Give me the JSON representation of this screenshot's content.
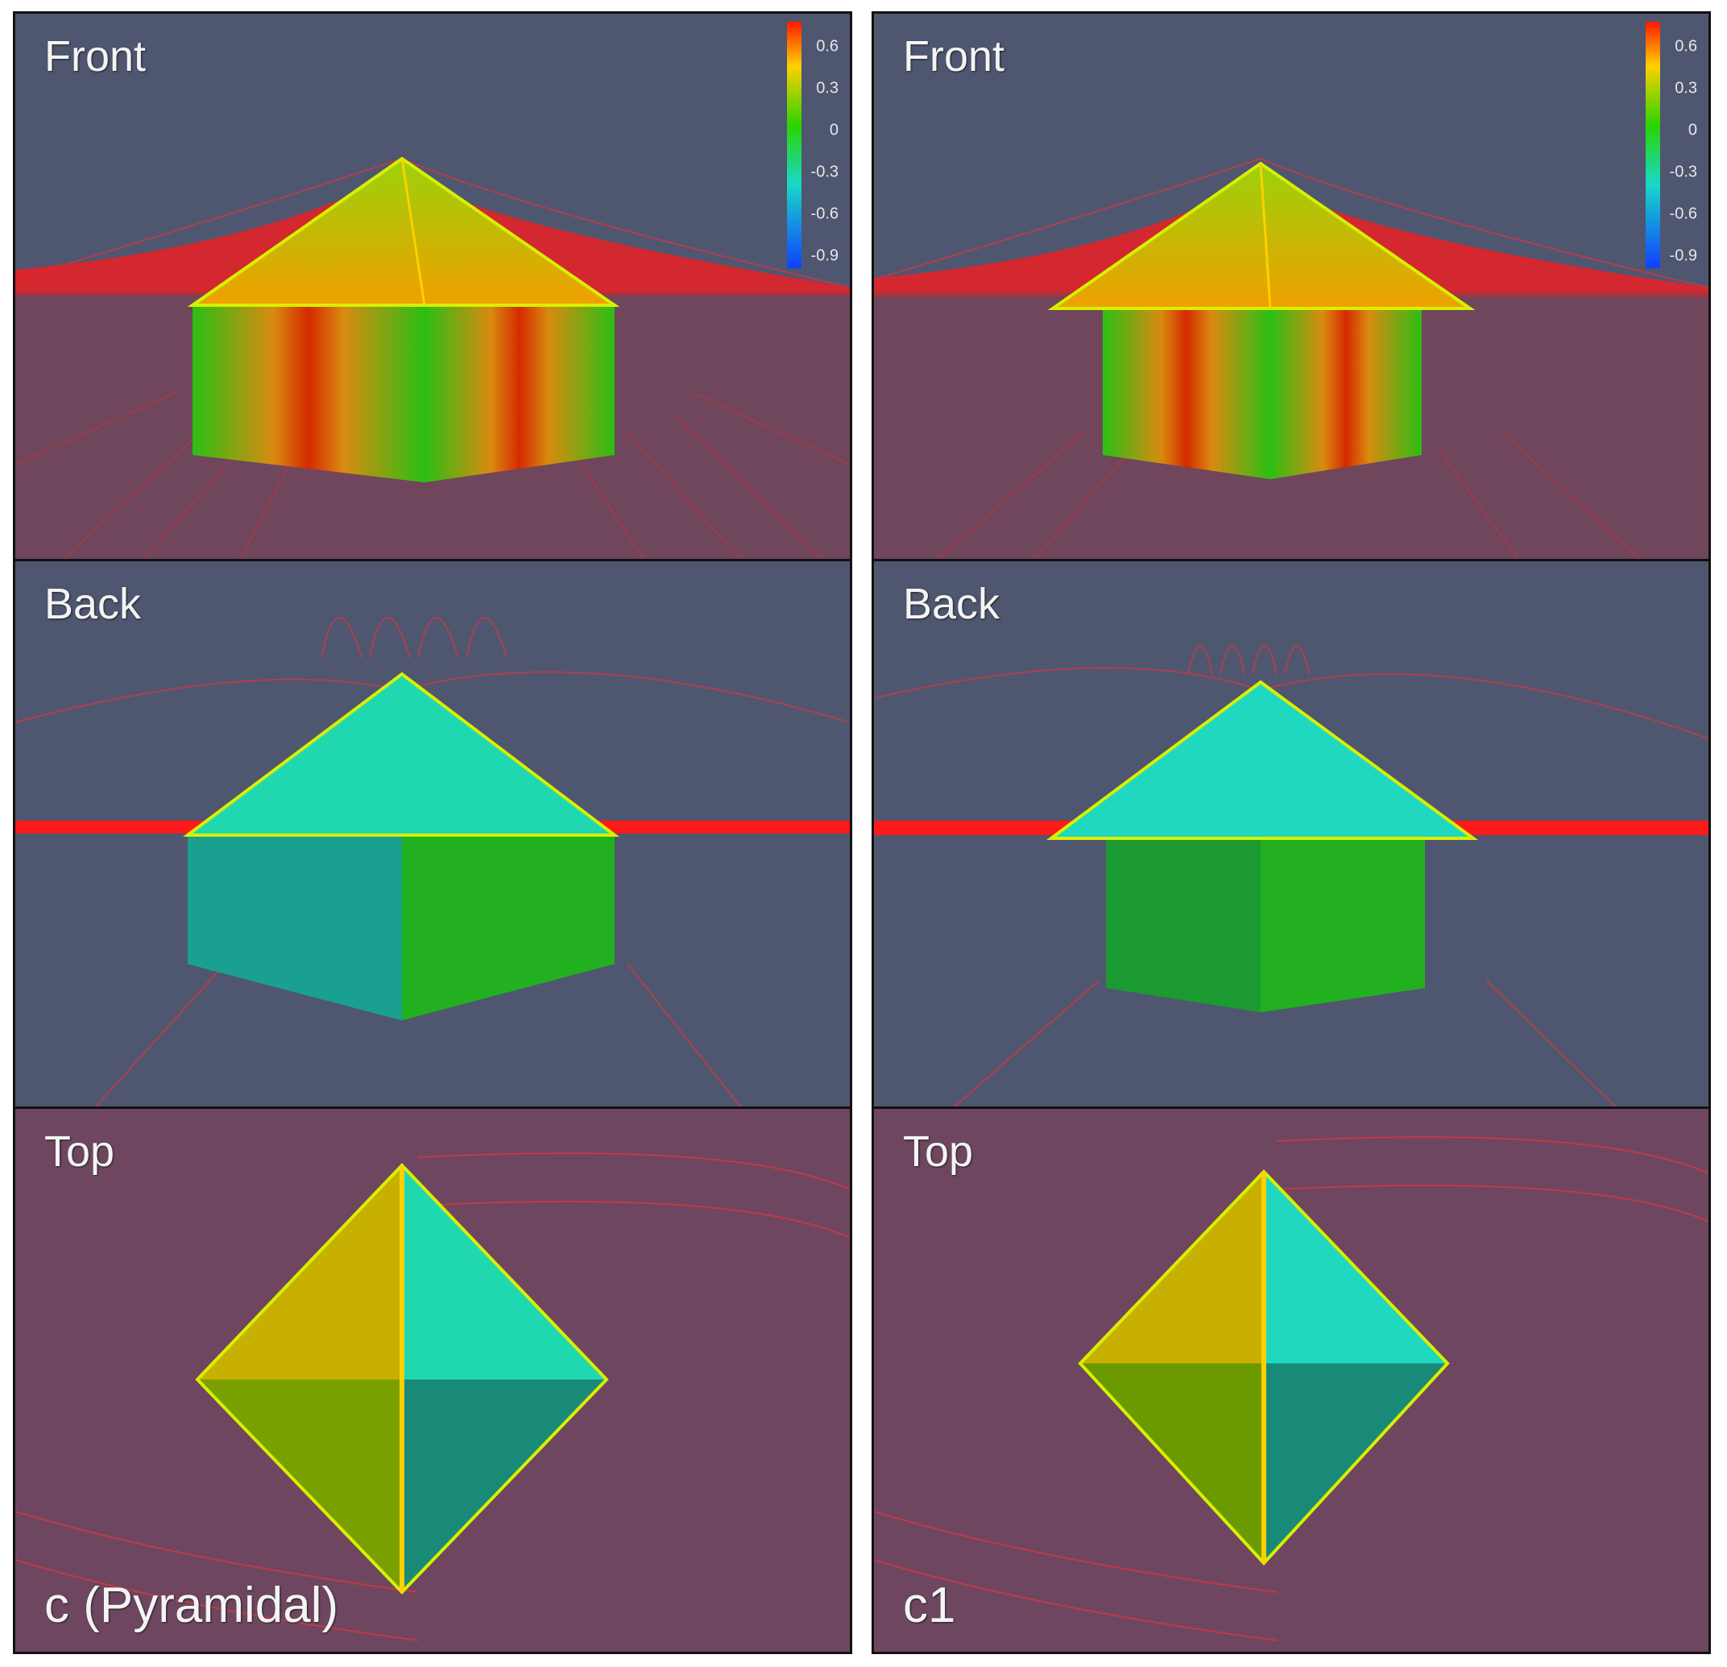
{
  "columns": [
    {
      "panels": [
        "Front",
        "Back",
        "Top"
      ],
      "caption": "c (Pyramidal)",
      "colorbar_ticks": [
        "0.6",
        "0.3",
        "0",
        "-0.3",
        "-0.6",
        "-0.9"
      ]
    },
    {
      "panels": [
        "Front",
        "Back",
        "Top"
      ],
      "caption": "c1",
      "colorbar_ticks": [
        "0.6",
        "0.3",
        "0",
        "-0.3",
        "-0.6",
        "-0.9"
      ]
    }
  ],
  "colors": {
    "background": "#4f5670",
    "streamline": "#ff2020",
    "high": "#ff3a00",
    "mid": "#2fd000",
    "low": "#18d8c8"
  }
}
